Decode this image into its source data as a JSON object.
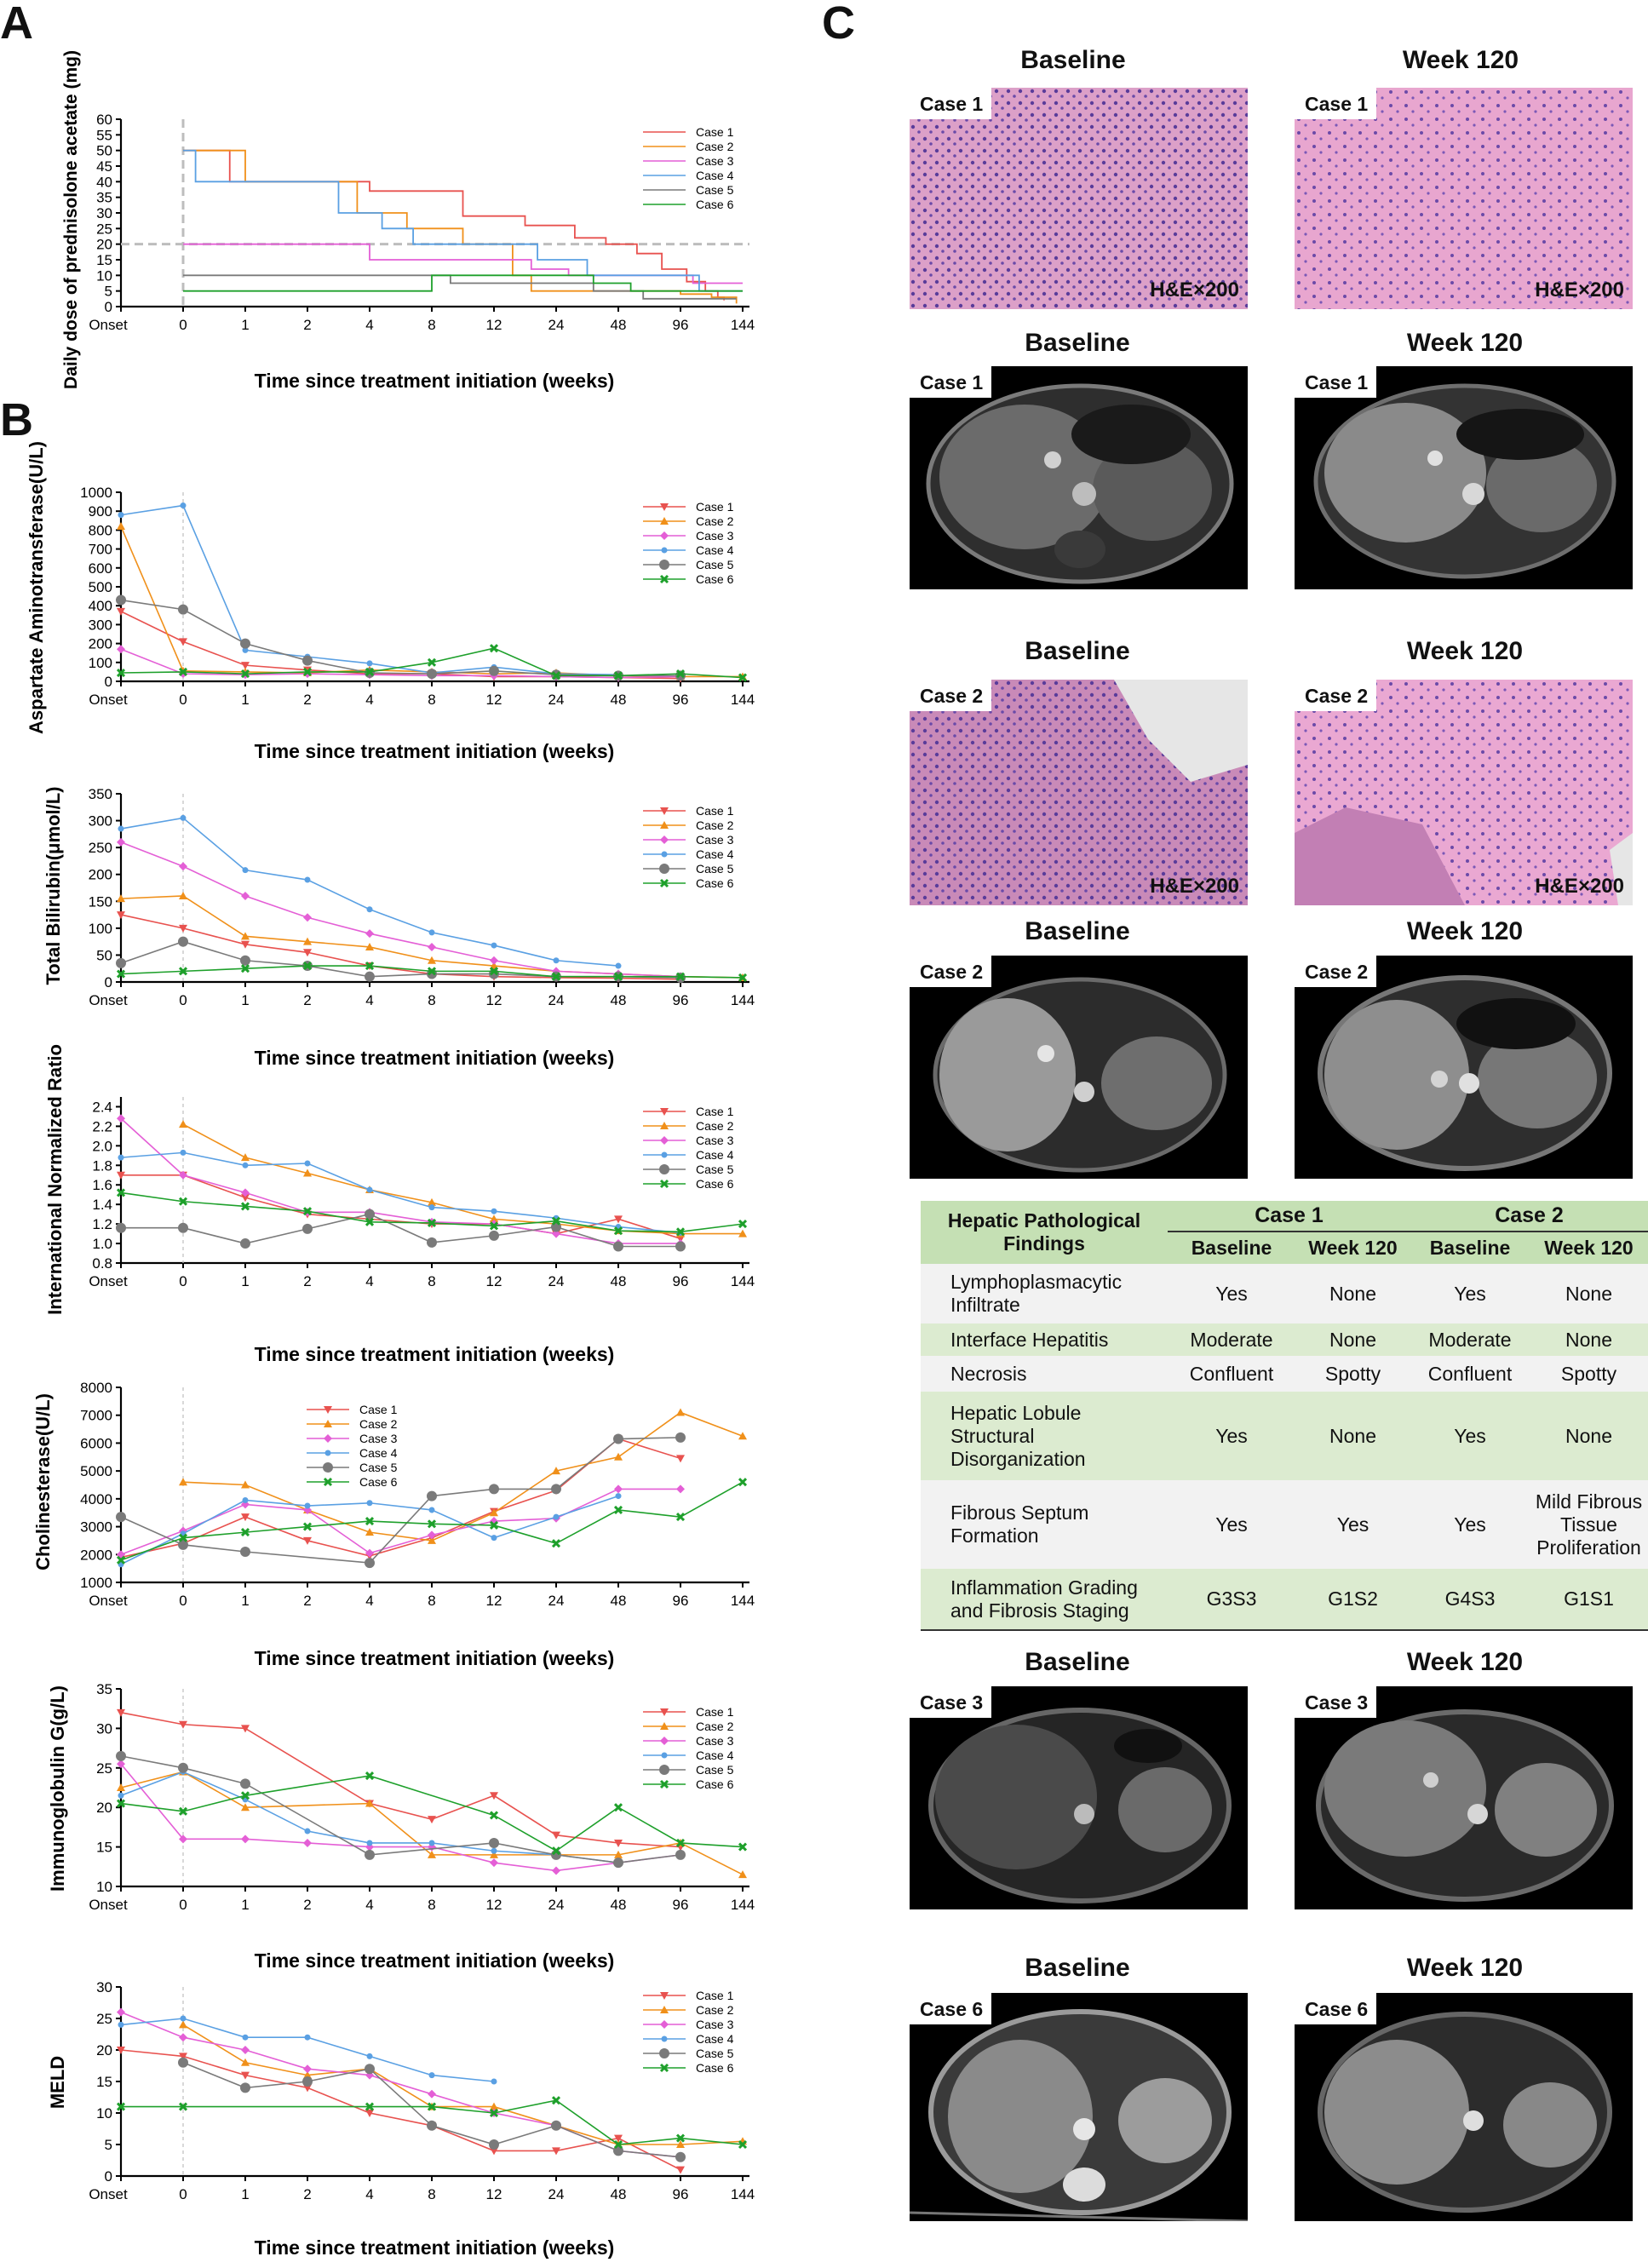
{
  "panels": {
    "a": "A",
    "b": "B",
    "c": "C"
  },
  "x_categories": [
    "Onset",
    "0",
    "1",
    "2",
    "4",
    "8",
    "12",
    "24",
    "48",
    "96",
    "144"
  ],
  "x_axis_title": "Time since treatment initiation (weeks)",
  "series_names": [
    "Case 1",
    "Case 2",
    "Case 3",
    "Case 4",
    "Case 5",
    "Case 6"
  ],
  "series_colors": [
    "#e8524f",
    "#f0901a",
    "#e45fd6",
    "#5aa0e3",
    "#7a7a7a",
    "#1ea02b"
  ],
  "chart_data": [
    {
      "id": "prednisolone",
      "type": "line",
      "step": true,
      "ylabel": "Daily dose of prednisolone acetate (mg)",
      "ylim": [
        0,
        60
      ],
      "yticks": [
        0,
        5,
        10,
        15,
        20,
        25,
        30,
        35,
        40,
        45,
        50,
        55,
        60
      ],
      "reference_lines": {
        "x": 1,
        "y": 20
      },
      "series": [
        {
          "name": "Case 1",
          "points": [
            [
              1,
              50
            ],
            [
              1.75,
              40
            ],
            [
              4,
              37
            ],
            [
              5.5,
              29
            ],
            [
              6.5,
              26
            ],
            [
              7.3,
              22
            ],
            [
              7.8,
              20
            ],
            [
              8.3,
              17
            ],
            [
              8.7,
              12
            ],
            [
              9.1,
              8
            ],
            [
              9.4,
              5
            ],
            [
              9.6,
              3
            ],
            [
              9.7,
              2
            ]
          ]
        },
        {
          "name": "Case 2",
          "points": [
            [
              1,
              50
            ],
            [
              2.0,
              50
            ],
            [
              2.0,
              40
            ],
            [
              3.8,
              40
            ],
            [
              3.8,
              30
            ],
            [
              4.6,
              25
            ],
            [
              5.5,
              20
            ],
            [
              6.3,
              10
            ],
            [
              6.6,
              5
            ],
            [
              8.4,
              5
            ],
            [
              9.0,
              4
            ],
            [
              9.5,
              3
            ],
            [
              9.9,
              1
            ]
          ]
        },
        {
          "name": "Case 3",
          "points": [
            [
              1,
              20
            ],
            [
              4.0,
              20
            ],
            [
              4.0,
              15
            ],
            [
              6.6,
              15
            ],
            [
              6.6,
              12
            ],
            [
              7.2,
              12
            ],
            [
              7.2,
              10
            ],
            [
              8.3,
              10
            ],
            [
              9.2,
              7.5
            ],
            [
              10,
              7.5
            ]
          ]
        },
        {
          "name": "Case 4",
          "points": [
            [
              1,
              50
            ],
            [
              1.2,
              50
            ],
            [
              1.2,
              40
            ],
            [
              3.3,
              40
            ],
            [
              3.5,
              30
            ],
            [
              4.2,
              25
            ],
            [
              4.7,
              20
            ],
            [
              6.7,
              15
            ],
            [
              7.5,
              10
            ],
            [
              8.6,
              10
            ],
            [
              9.3,
              5
            ],
            [
              10,
              5
            ]
          ]
        },
        {
          "name": "Case 5",
          "points": [
            [
              1,
              10
            ],
            [
              5.3,
              10
            ],
            [
              5.3,
              7.5
            ],
            [
              7.6,
              7.5
            ],
            [
              7.6,
              5
            ],
            [
              8.4,
              5
            ],
            [
              8.4,
              2.5
            ],
            [
              9.9,
              2.5
            ]
          ]
        },
        {
          "name": "Case 6",
          "points": [
            [
              1,
              5
            ],
            [
              5.0,
              5
            ],
            [
              5.0,
              10
            ],
            [
              7.6,
              10
            ],
            [
              7.6,
              7.5
            ],
            [
              8.2,
              7.5
            ],
            [
              8.2,
              5
            ],
            [
              10,
              5
            ]
          ]
        }
      ]
    },
    {
      "id": "ast",
      "type": "line",
      "ylabel": "Aspartate Aminotransferase(U/L)",
      "ylim": [
        0,
        1000
      ],
      "yticks": [
        0,
        100,
        200,
        300,
        400,
        500,
        600,
        700,
        800,
        900,
        1000
      ],
      "series": [
        {
          "name": "Case 1",
          "values": [
            370,
            210,
            85,
            60,
            40,
            40,
            25,
            25,
            20,
            15,
            null
          ]
        },
        {
          "name": "Case 2",
          "values": [
            820,
            55,
            50,
            45,
            60,
            50,
            40,
            45,
            30,
            25,
            25
          ]
        },
        {
          "name": "Case 3",
          "values": [
            170,
            40,
            35,
            40,
            35,
            30,
            30,
            25,
            20,
            25,
            null
          ]
        },
        {
          "name": "Case 4",
          "values": [
            880,
            930,
            165,
            130,
            95,
            45,
            75,
            40,
            35,
            null,
            null
          ]
        },
        {
          "name": "Case 5",
          "values": [
            430,
            380,
            200,
            110,
            45,
            40,
            55,
            35,
            30,
            30,
            null
          ]
        },
        {
          "name": "Case 6",
          "values": [
            45,
            50,
            40,
            50,
            50,
            100,
            175,
            30,
            30,
            40,
            20
          ]
        }
      ]
    },
    {
      "id": "tbil",
      "type": "line",
      "ylabel": "Total Bilirubin(μmol/L)",
      "ylim": [
        0,
        350
      ],
      "yticks": [
        0,
        50,
        100,
        150,
        200,
        250,
        300,
        350
      ],
      "series": [
        {
          "name": "Case 1",
          "values": [
            125,
            100,
            70,
            55,
            30,
            15,
            10,
            8,
            7,
            5,
            null
          ]
        },
        {
          "name": "Case 2",
          "values": [
            155,
            160,
            85,
            75,
            65,
            40,
            30,
            20,
            15,
            10,
            8
          ]
        },
        {
          "name": "Case 3",
          "values": [
            260,
            215,
            160,
            120,
            90,
            65,
            40,
            20,
            15,
            10,
            null
          ]
        },
        {
          "name": "Case 4",
          "values": [
            285,
            305,
            208,
            190,
            135,
            92,
            68,
            40,
            30,
            null,
            null
          ]
        },
        {
          "name": "Case 5",
          "values": [
            35,
            75,
            40,
            30,
            10,
            15,
            15,
            10,
            10,
            8,
            null
          ]
        },
        {
          "name": "Case 6",
          "values": [
            15,
            20,
            25,
            30,
            30,
            20,
            20,
            10,
            10,
            10,
            8
          ]
        }
      ]
    },
    {
      "id": "inr",
      "type": "line",
      "ylabel": "International Normalized Ratio",
      "ylim": [
        0.8,
        2.5
      ],
      "yticks": [
        0.8,
        1.0,
        1.2,
        1.4,
        1.6,
        1.8,
        2.0,
        2.2,
        2.4
      ],
      "series": [
        {
          "name": "Case 1",
          "values": [
            1.7,
            1.7,
            1.47,
            1.3,
            1.25,
            1.2,
            1.2,
            1.1,
            1.25,
            1.05,
            null
          ]
        },
        {
          "name": "Case 2",
          "values": [
            null,
            2.22,
            1.88,
            1.72,
            1.55,
            1.42,
            1.25,
            1.2,
            1.13,
            1.1,
            1.1
          ]
        },
        {
          "name": "Case 3",
          "values": [
            2.28,
            1.7,
            1.52,
            1.32,
            1.32,
            1.22,
            1.2,
            1.1,
            1.0,
            1.0,
            null
          ]
        },
        {
          "name": "Case 4",
          "values": [
            1.88,
            1.93,
            1.8,
            1.82,
            1.55,
            1.37,
            1.33,
            1.26,
            1.17,
            1.11,
            null
          ]
        },
        {
          "name": "Case 5",
          "values": [
            1.16,
            1.16,
            1.0,
            1.15,
            1.3,
            1.01,
            1.08,
            1.17,
            0.97,
            0.97,
            null
          ]
        },
        {
          "name": "Case 6",
          "values": [
            1.52,
            1.43,
            1.38,
            1.33,
            1.22,
            1.21,
            1.18,
            1.23,
            1.13,
            1.12,
            1.2
          ]
        }
      ]
    },
    {
      "id": "che",
      "type": "line",
      "ylabel": "Cholinesterase(U/L)",
      "ylim": [
        1000,
        8000
      ],
      "yticks": [
        1000,
        2000,
        3000,
        4000,
        5000,
        6000,
        7000,
        8000
      ],
      "legend_position": "top-center",
      "series": [
        {
          "name": "Case 1",
          "values": [
            1900,
            2400,
            3350,
            2500,
            1950,
            2600,
            3550,
            4300,
            6150,
            5450,
            null
          ]
        },
        {
          "name": "Case 2",
          "values": [
            null,
            4600,
            4500,
            3600,
            2800,
            2500,
            3500,
            5000,
            5500,
            7100,
            6250
          ]
        },
        {
          "name": "Case 3",
          "values": [
            2000,
            2850,
            3800,
            3600,
            2050,
            2700,
            3200,
            3300,
            4350,
            4350,
            null
          ]
        },
        {
          "name": "Case 4",
          "values": [
            1650,
            2750,
            3950,
            3750,
            3850,
            3600,
            2600,
            3350,
            4100,
            null,
            null
          ]
        },
        {
          "name": "Case 5",
          "values": [
            3350,
            2350,
            2100,
            null,
            1700,
            4100,
            4350,
            4350,
            6150,
            6200,
            null
          ]
        },
        {
          "name": "Case 6",
          "values": [
            1800,
            2600,
            2800,
            3000,
            3200,
            3100,
            3050,
            2400,
            3600,
            3350,
            4600
          ]
        }
      ]
    },
    {
      "id": "igg",
      "type": "line",
      "ylabel": "Immunoglobulin G(g/L)",
      "ylim": [
        10,
        35
      ],
      "yticks": [
        10,
        15,
        20,
        25,
        30,
        35
      ],
      "series": [
        {
          "name": "Case 1",
          "values": [
            32,
            30.5,
            30,
            null,
            20.5,
            18.5,
            21.5,
            16.5,
            15.5,
            15,
            null
          ]
        },
        {
          "name": "Case 2",
          "values": [
            22.5,
            24.5,
            20,
            null,
            20.5,
            14,
            14,
            14,
            14,
            15.5,
            11.5
          ]
        },
        {
          "name": "Case 3",
          "values": [
            25.5,
            16,
            16,
            15.5,
            15,
            15,
            13,
            12,
            13,
            14,
            null
          ]
        },
        {
          "name": "Case 4",
          "values": [
            21.5,
            24.5,
            21,
            17,
            15.5,
            15.5,
            14.5,
            14,
            13,
            null,
            null
          ]
        },
        {
          "name": "Case 5",
          "values": [
            26.5,
            25,
            23,
            null,
            14,
            null,
            15.5,
            14,
            13,
            14,
            null
          ]
        },
        {
          "name": "Case 6",
          "values": [
            20.5,
            19.5,
            21.5,
            null,
            24,
            null,
            19,
            14.5,
            20,
            15.5,
            15
          ]
        }
      ]
    },
    {
      "id": "meld",
      "type": "line",
      "ylabel": "MELD",
      "ylim": [
        0,
        30
      ],
      "yticks": [
        0,
        5,
        10,
        15,
        20,
        25,
        30
      ],
      "series": [
        {
          "name": "Case 1",
          "values": [
            20,
            19,
            16,
            14,
            10,
            8,
            4,
            4,
            6,
            1,
            null
          ]
        },
        {
          "name": "Case 2",
          "values": [
            null,
            24,
            18,
            16,
            17,
            11,
            11,
            8,
            5,
            5,
            5.5
          ]
        },
        {
          "name": "Case 3",
          "values": [
            26,
            22,
            20,
            17,
            16,
            13,
            10,
            8,
            4,
            3,
            null
          ]
        },
        {
          "name": "Case 4",
          "values": [
            24,
            25,
            22,
            22,
            19,
            16,
            15,
            null,
            null,
            null,
            null
          ]
        },
        {
          "name": "Case 5",
          "values": [
            null,
            18,
            14,
            15,
            17,
            8,
            5,
            8,
            4,
            3,
            null
          ]
        },
        {
          "name": "Case 6",
          "values": [
            11,
            11,
            null,
            null,
            11,
            11,
            10,
            12,
            5,
            6,
            5
          ]
        }
      ]
    }
  ],
  "panel_c": {
    "col_baseline": "Baseline",
    "col_week120": "Week 120",
    "case1": "Case 1",
    "case2": "Case 2",
    "case3": "Case 3",
    "case6": "Case 6",
    "stain": "H&E×200",
    "table": {
      "title": "Hepatic Pathological Findings",
      "case1": "Case 1",
      "case2": "Case 2",
      "baseline": "Baseline",
      "week120": "Week 120",
      "rows": [
        {
          "label": "Lymphoplasmacytic Infiltrate",
          "c1b": "Yes",
          "c1w": "None",
          "c2b": "Yes",
          "c2w": "None"
        },
        {
          "label": "Interface Hepatitis",
          "c1b": "Moderate",
          "c1w": "None",
          "c2b": "Moderate",
          "c2w": "None"
        },
        {
          "label": "Necrosis",
          "c1b": "Confluent",
          "c1w": "Spotty",
          "c2b": "Confluent",
          "c2w": "Spotty"
        },
        {
          "label": "Hepatic Lobule Structural Disorganization",
          "c1b": "Yes",
          "c1w": "None",
          "c2b": "Yes",
          "c2w": "None"
        },
        {
          "label": "Fibrous Septum Formation",
          "c1b": "Yes",
          "c1w": "Yes",
          "c2b": "Yes",
          "c2w": "Mild Fibrous Tissue Proliferation"
        },
        {
          "label": "Inflammation Grading and Fibrosis Staging",
          "c1b": "G3S3",
          "c1w": "G1S2",
          "c2b": "G4S3",
          "c2w": "G1S1"
        }
      ]
    }
  }
}
